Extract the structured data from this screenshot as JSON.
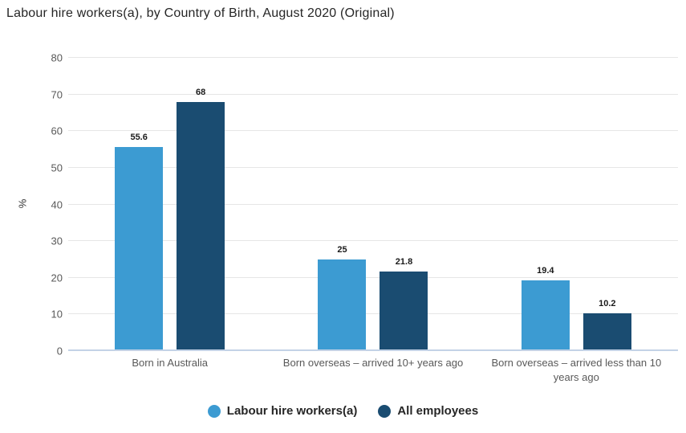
{
  "chart_data": {
    "type": "bar",
    "title": "Labour hire workers(a), by Country of Birth, August 2020 (Original)",
    "categories": [
      "Born in Australia",
      "Born overseas – arrived 10+ years ago",
      "Born overseas – arrived less than 10 years ago"
    ],
    "series": [
      {
        "name": "Labour hire workers(a)",
        "values": [
          55.6,
          25,
          19.4
        ],
        "color": "#3c9bd2"
      },
      {
        "name": "All employees",
        "values": [
          68,
          21.8,
          10.2
        ],
        "color": "#1a4c71"
      }
    ],
    "xlabel": "",
    "ylabel": "%",
    "ylim": [
      0,
      80
    ],
    "yticks": [
      0,
      10,
      20,
      30,
      40,
      50,
      60,
      70,
      80
    ],
    "grid": true,
    "gridline_color": "#e6e6e6",
    "baseline_color": "#c3d2e6",
    "legend_position": "bottom"
  }
}
